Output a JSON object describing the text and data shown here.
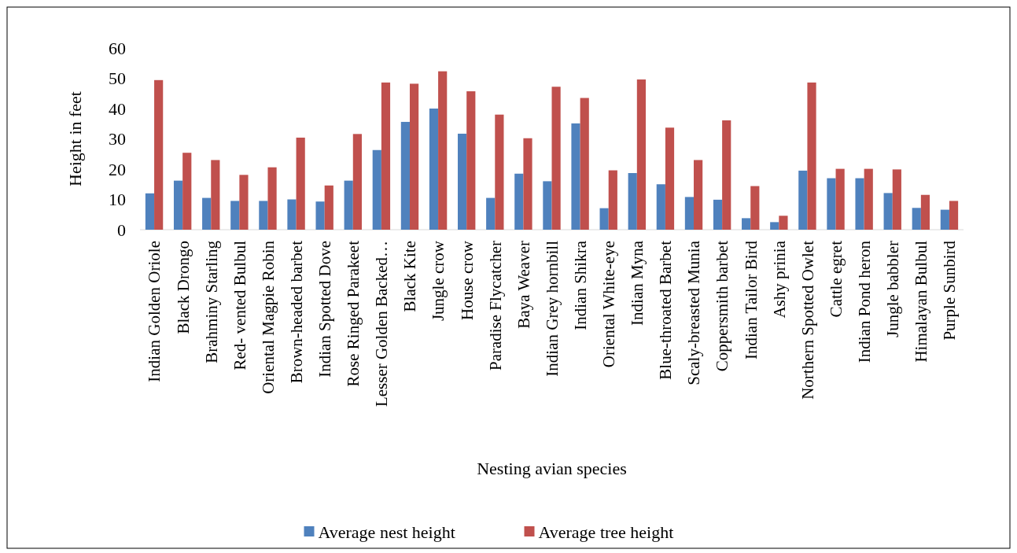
{
  "chart_data": {
    "type": "bar",
    "xlabel": "Nesting avian species",
    "ylabel": "Height in feet",
    "categories": [
      "Indian Golden Oriole",
      "Black Drongo",
      "Brahminy Starling",
      "Red- vented Bulbul",
      "Oriental Magpie Robin",
      "Brown-headed barbet",
      "Indian Spotted Dove",
      "Rose Ringed Parakeet",
      "Lesser Golden Backed…",
      "Black Kite",
      "Jungle crow",
      "House crow",
      "Paradise Flycatcher",
      "Baya Weaver",
      "Indian Grey hornbill",
      "Indian Shikra",
      "Oriental White-eye",
      "Indian Myna",
      "Blue-throated Barbet",
      "Scaly-breasted Munia",
      "Coppersmith barbet",
      "Indian Tailor Bird",
      "Ashy prinia",
      "Northern Spotted Owlet",
      "Cattle egret",
      "Indian Pond heron",
      "Jungle babbler",
      "Himalayan Bulbul",
      "Purple Sunbird"
    ],
    "series": [
      {
        "name": "Average nest height",
        "color": "#4f81bd",
        "values": [
          12,
          16.2,
          10.5,
          9.5,
          9.5,
          10,
          9.3,
          16.2,
          26.3,
          35.6,
          40,
          31.7,
          10.5,
          18.5,
          16,
          35.1,
          7.1,
          18.7,
          15,
          10.8,
          9.9,
          3.8,
          2.5,
          19.5,
          17,
          17,
          12.1,
          7.2,
          6.6
        ]
      },
      {
        "name": "Average tree height",
        "color": "#c0504d",
        "values": [
          49.4,
          25.4,
          23,
          18.1,
          20.6,
          30.4,
          14.6,
          31.6,
          48.6,
          48.2,
          52.3,
          45.7,
          38,
          30.2,
          47.2,
          43.5,
          19.6,
          49.6,
          33.7,
          23,
          36.1,
          14.4,
          4.6,
          48.6,
          20.1,
          20.1,
          19.9,
          11.5,
          9.5
        ]
      }
    ],
    "ylim": [
      0,
      60
    ],
    "yticks": [
      0,
      10,
      20,
      30,
      40,
      50,
      60
    ],
    "legend": "bottom"
  }
}
